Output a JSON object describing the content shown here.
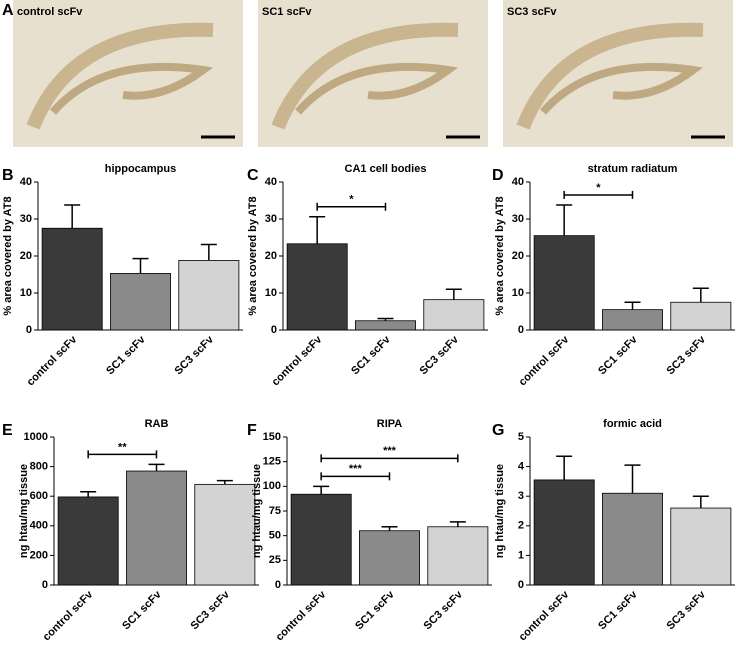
{
  "panel_a": {
    "label": "A",
    "images": [
      "control scFv",
      "SC1 scFv",
      "SC3 scFv"
    ]
  },
  "chart_data": [
    {
      "type": "bar",
      "panel": "B",
      "title": "hippocampus",
      "ylabel": "% area covered by AT8",
      "categories": [
        "control scFv",
        "SC1 scFv",
        "SC3 scFv"
      ],
      "values": [
        27.5,
        15.3,
        18.8
      ],
      "errors": [
        6.3,
        4,
        4.3
      ],
      "colors": [
        "#3a3a3a",
        "#8a8a8a",
        "#d3d3d3"
      ],
      "ylim": [
        0,
        40
      ],
      "yticks": [
        0,
        10,
        20,
        30,
        40
      ],
      "significance": []
    },
    {
      "type": "bar",
      "panel": "C",
      "title": "CA1 cell bodies",
      "ylabel": "% area covered by AT8",
      "categories": [
        "control scFv",
        "SC1 scFv",
        "SC3 scFv"
      ],
      "values": [
        23.3,
        2.5,
        8.2
      ],
      "errors": [
        7.3,
        0.6,
        2.8
      ],
      "colors": [
        "#3a3a3a",
        "#8a8a8a",
        "#d3d3d3"
      ],
      "ylim": [
        0,
        40
      ],
      "yticks": [
        0,
        10,
        20,
        30,
        40
      ],
      "significance": [
        {
          "from": 0,
          "to": 1,
          "label": "*"
        }
      ]
    },
    {
      "type": "bar",
      "panel": "D",
      "title": "stratum radiatum",
      "ylabel": "% area covered by AT8",
      "categories": [
        "control scFv",
        "SC1 scFv",
        "SC3 scFv"
      ],
      "values": [
        25.5,
        5.5,
        7.5
      ],
      "errors": [
        8.3,
        2,
        3.8
      ],
      "colors": [
        "#3a3a3a",
        "#8a8a8a",
        "#d3d3d3"
      ],
      "ylim": [
        0,
        40
      ],
      "yticks": [
        0,
        10,
        20,
        30,
        40
      ],
      "significance": [
        {
          "from": 0,
          "to": 1,
          "label": "*"
        }
      ]
    },
    {
      "type": "bar",
      "panel": "E",
      "title": "RAB",
      "ylabel": "ng htau/mg tissue",
      "categories": [
        "control scFv",
        "SC1 scFv",
        "SC3 scFv"
      ],
      "values": [
        595,
        770,
        680
      ],
      "errors": [
        35,
        45,
        25
      ],
      "colors": [
        "#3a3a3a",
        "#8a8a8a",
        "#d3d3d3"
      ],
      "ylim": [
        0,
        1000
      ],
      "yticks": [
        0,
        200,
        400,
        600,
        800,
        1000
      ],
      "significance": [
        {
          "from": 0,
          "to": 1,
          "label": "**"
        }
      ]
    },
    {
      "type": "bar",
      "panel": "F",
      "title": "RIPA",
      "ylabel": "ng htau/mg tissue",
      "categories": [
        "control scFv",
        "SC1 scFv",
        "SC3 scFv"
      ],
      "values": [
        92,
        55,
        59
      ],
      "errors": [
        8,
        4,
        5
      ],
      "colors": [
        "#3a3a3a",
        "#8a8a8a",
        "#d3d3d3"
      ],
      "ylim": [
        0,
        150
      ],
      "yticks": [
        0,
        25,
        50,
        75,
        100,
        125,
        150
      ],
      "significance": [
        {
          "from": 0,
          "to": 1,
          "label": "***"
        },
        {
          "from": 0,
          "to": 2,
          "label": "***"
        }
      ]
    },
    {
      "type": "bar",
      "panel": "G",
      "title": "formic acid",
      "ylabel": "ng htau/mg tissue",
      "categories": [
        "control scFv",
        "SC1 scFv",
        "SC3 scFv"
      ],
      "values": [
        3.55,
        3.1,
        2.6
      ],
      "errors": [
        0.8,
        0.95,
        0.4
      ],
      "colors": [
        "#3a3a3a",
        "#8a8a8a",
        "#d3d3d3"
      ],
      "ylim": [
        0,
        5
      ],
      "yticks": [
        0,
        1,
        2,
        3,
        4,
        5
      ],
      "significance": []
    }
  ]
}
